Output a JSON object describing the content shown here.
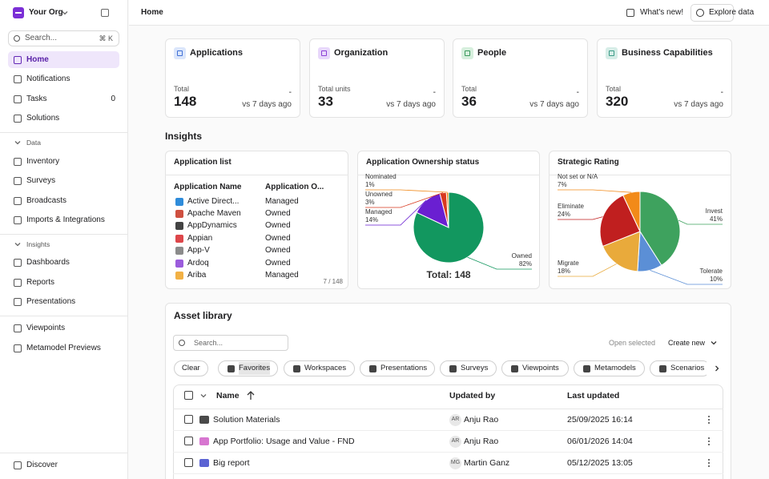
{
  "sidebar": {
    "org": "Your Org",
    "search": "Search...",
    "shortcut": "⌘ K",
    "nav": [
      "Home",
      "Notifications",
      "Tasks",
      "Solutions"
    ],
    "tasks_count": 0,
    "sections": [
      {
        "title": "Data",
        "items": [
          "Inventory",
          "Surveys",
          "Broadcasts",
          "Imports & Integrations"
        ]
      },
      {
        "title": "Insights",
        "items": [
          "Dashboards",
          "Reports",
          "Presentations"
        ]
      }
    ],
    "more": [
      "Viewpoints",
      "Metamodel Previews"
    ],
    "footer": "Discover"
  },
  "topbar": {
    "title": "Home",
    "whats_new": "What's new!",
    "explore": "Explore data"
  },
  "stats": [
    {
      "title": "Applications",
      "label": "Total",
      "value": 148,
      "change": "-",
      "compare": "vs 7 days ago"
    },
    {
      "title": "Organization",
      "label": "Total units",
      "value": 33,
      "change": "-",
      "compare": "vs 7 days ago"
    },
    {
      "title": "People",
      "label": "Total",
      "value": 36,
      "change": "-",
      "compare": "vs 7 days ago"
    },
    {
      "title": "Business Capabilities",
      "label": "Total",
      "value": 320,
      "change": "-",
      "compare": "vs 7 days ago"
    }
  ],
  "insights": {
    "title": "Insights",
    "app_list": {
      "title": "Application list",
      "columns": [
        "Application Name",
        "Application O..."
      ],
      "rows": [
        [
          "Active Direct...",
          "Managed"
        ],
        [
          "Apache Maven",
          "Owned"
        ],
        [
          "AppDynamics",
          "Owned"
        ],
        [
          "Appian",
          "Owned"
        ],
        [
          "App-V",
          "Owned"
        ],
        [
          "Ardoq",
          "Owned"
        ],
        [
          "Ariba",
          "Managed"
        ]
      ],
      "pager": "7 / 148"
    }
  },
  "chart_data": [
    {
      "type": "pie",
      "title": "Application Ownership status",
      "categories": [
        "Owned",
        "Managed",
        "Unowned",
        "Nominated"
      ],
      "values": [
        82,
        14,
        3,
        1
      ],
      "value_labels": [
        "82%",
        "14%",
        "3%",
        "1%"
      ],
      "colors": [
        "#12975f",
        "#6a1fd1",
        "#d8391f",
        "#f08a1c"
      ],
      "total_label": "Total: 148"
    },
    {
      "type": "pie",
      "title": "Strategic Rating",
      "categories": [
        "Invest",
        "Tolerate",
        "Migrate",
        "Eliminate",
        "Not set or N/A"
      ],
      "values": [
        41,
        10,
        18,
        24,
        7
      ],
      "value_labels": [
        "41%",
        "10%",
        "18%",
        "24%",
        "7%"
      ],
      "colors": [
        "#3ea25e",
        "#5b8fd6",
        "#e9aa3b",
        "#c01f1f",
        "#f28a19"
      ]
    }
  ],
  "asset_library": {
    "title": "Asset library",
    "search": "Search...",
    "open_selected": "Open selected",
    "create_new": "Create new",
    "clear": "Clear",
    "filters": [
      "Favorites",
      "Workspaces",
      "Presentations",
      "Surveys",
      "Viewpoints",
      "Metamodels",
      "Scenarios"
    ],
    "columns": [
      "Name",
      "Updated by",
      "Last updated"
    ],
    "rows": [
      {
        "name": "Solution Materials",
        "initials": "AR",
        "updated_by": "Anju Rao",
        "last_updated": "25/09/2025 16:14"
      },
      {
        "name": "App Portfolio: Usage and Value - FND",
        "initials": "AR",
        "updated_by": "Anju Rao",
        "last_updated": "06/01/2026 14:04"
      },
      {
        "name": "Big report",
        "initials": "MG",
        "updated_by": "Martin Ganz",
        "last_updated": "05/12/2025 13:05"
      }
    ]
  }
}
